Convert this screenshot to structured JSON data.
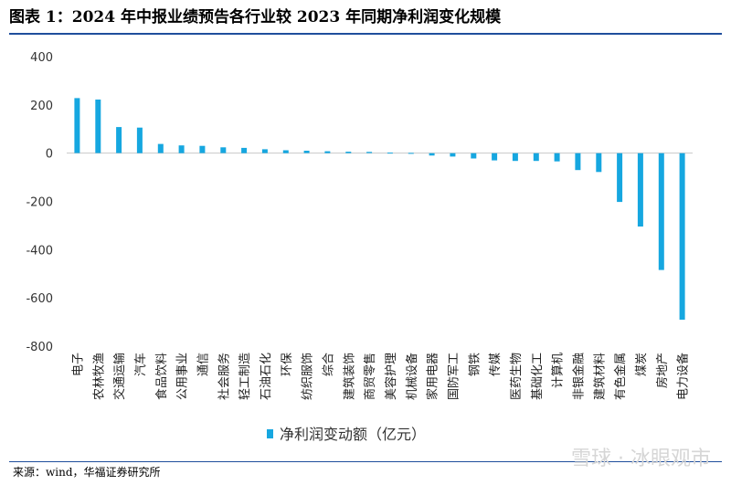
{
  "title": "图表 1：2024 年中报业绩预告各行业较 2023 年同期净利润变化规模",
  "source": "来源：wind，华福证券研究所",
  "watermark": "雪球 · 冰眼观市",
  "chart_data": {
    "type": "bar",
    "title": "",
    "xlabel": "",
    "ylabel": "",
    "ylim": [
      -800,
      400
    ],
    "yticks": [
      400,
      200,
      0,
      -200,
      -400,
      -600,
      -800
    ],
    "grid": false,
    "legend": "bottom-left",
    "bar_color": "#16a7e0",
    "categories": [
      "电子",
      "农林牧渔",
      "交通运输",
      "汽车",
      "食品饮料",
      "公用事业",
      "通信",
      "社会服务",
      "轻工制造",
      "石油石化",
      "环保",
      "纺织服饰",
      "综合",
      "建筑装饰",
      "商贸零售",
      "美容护理",
      "机械设备",
      "家用电器",
      "国防军工",
      "钢铁",
      "传媒",
      "医药生物",
      "基础化工",
      "计算机",
      "非银金融",
      "建筑材料",
      "有色金属",
      "煤炭",
      "房地产",
      "电力设备"
    ],
    "series": [
      {
        "name": "净利润变动额（亿元）",
        "values": [
          228,
          222,
          108,
          106,
          38,
          32,
          30,
          24,
          22,
          16,
          12,
          10,
          8,
          6,
          5,
          2,
          1,
          -10,
          -14,
          -22,
          -30,
          -32,
          -32,
          -34,
          -70,
          -78,
          -202,
          -304,
          -484,
          -690
        ]
      }
    ]
  }
}
